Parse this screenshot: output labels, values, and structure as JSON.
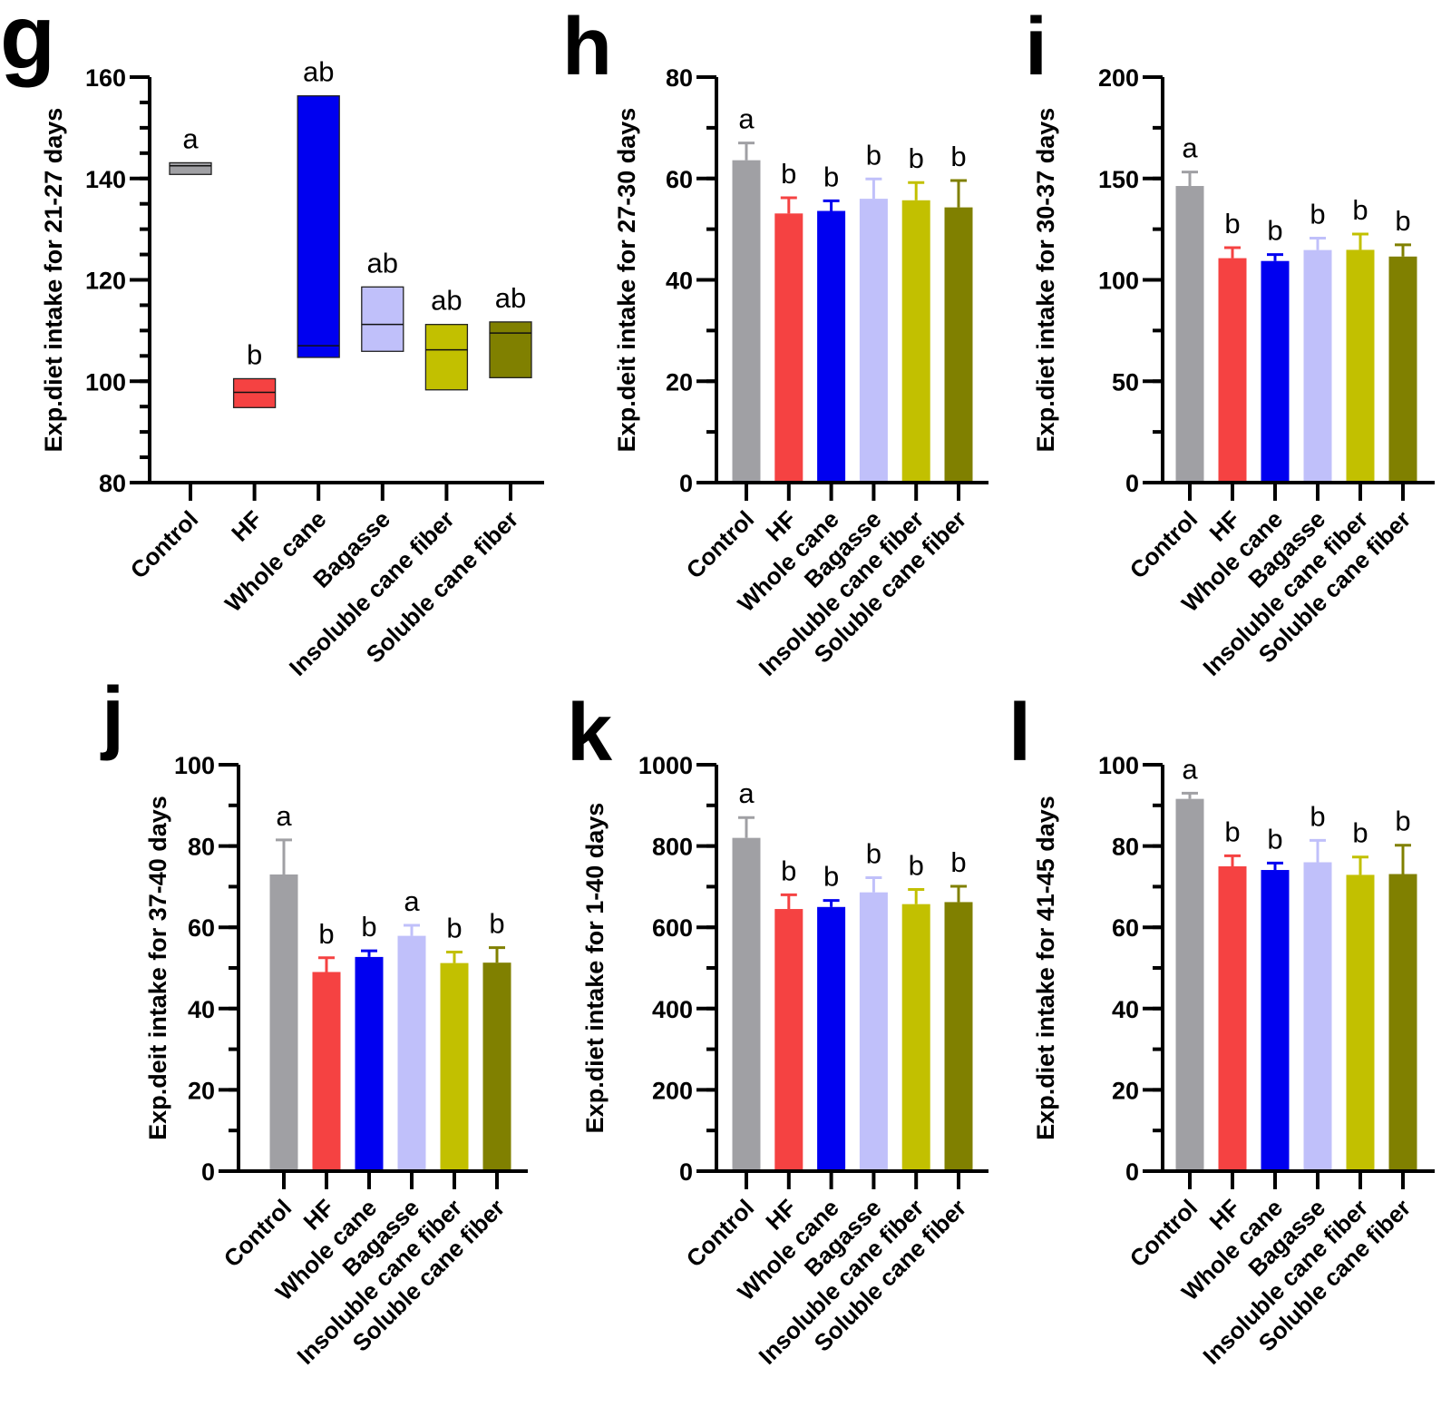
{
  "figure": {
    "categories": [
      "Control",
      "HF",
      "Whole cane",
      "Bagasse",
      "Insoluble cane fiber",
      "Soluble cane fiber"
    ],
    "colors": [
      "#a0a0a4",
      "#f54242",
      "#0000f0",
      "#c0c0fa",
      "#c2c000",
      "#808000"
    ]
  },
  "chart_data": [
    {
      "panel": "g",
      "type": "floating-bar",
      "ylabel": "Exp.diet intake for 21-27 days",
      "ylim": [
        80,
        160
      ],
      "yticks": [
        80,
        100,
        120,
        140,
        160
      ],
      "yticks_minor_step": 5,
      "categories": [
        "Control",
        "HF",
        "Whole cane",
        "Bagasse",
        "Insoluble cane fiber",
        "Soluble cane fiber"
      ],
      "min": [
        140.8,
        94.8,
        104.7,
        105.9,
        98.3,
        100.7
      ],
      "max": [
        143.1,
        100.5,
        156.3,
        118.6,
        111.2,
        111.7
      ],
      "median": [
        142.5,
        97.8,
        107.0,
        111.2,
        106.2,
        109.5
      ],
      "significance": [
        "a",
        "b",
        "ab",
        "ab",
        "ab",
        "ab"
      ]
    },
    {
      "panel": "h",
      "type": "bar",
      "ylabel": "Exp.deit intake for 27-30 days",
      "ylim": [
        0,
        80
      ],
      "yticks": [
        0,
        20,
        40,
        60,
        80
      ],
      "yticks_minor_step": 10,
      "categories": [
        "Control",
        "HF",
        "Whole cane",
        "Bagasse",
        "Insoluble cane fiber",
        "Soluble cane fiber"
      ],
      "values": [
        63.6,
        53.1,
        53.6,
        56.0,
        55.7,
        54.3
      ],
      "error_upper": [
        67.0,
        56.2,
        55.6,
        59.9,
        59.2,
        59.6
      ],
      "significance": [
        "a",
        "b",
        "b",
        "b",
        "b",
        "b"
      ]
    },
    {
      "panel": "i",
      "type": "bar",
      "ylabel": "Exp.diet intake for 30-37 days",
      "ylim": [
        0,
        200
      ],
      "yticks": [
        0,
        50,
        100,
        150,
        200
      ],
      "yticks_minor_step": 25,
      "categories": [
        "Control",
        "HF",
        "Whole cane",
        "Bagasse",
        "Insoluble cane fiber",
        "Soluble cane fiber"
      ],
      "values": [
        146.3,
        110.7,
        109.3,
        114.7,
        114.8,
        111.5
      ],
      "error_upper": [
        153.2,
        115.9,
        112.5,
        120.6,
        122.6,
        117.3
      ],
      "significance": [
        "a",
        "b",
        "b",
        "b",
        "b",
        "b"
      ]
    },
    {
      "panel": "j",
      "type": "bar",
      "ylabel": "Exp.deit intake for 37-40 days",
      "ylim": [
        0,
        100
      ],
      "yticks": [
        0,
        20,
        40,
        60,
        80,
        100
      ],
      "yticks_minor_step": 10,
      "categories": [
        "Control",
        "HF",
        "Whole cane",
        "Bagasse",
        "Insoluble cane fiber",
        "Soluble cane fiber"
      ],
      "values": [
        73.0,
        49.0,
        52.7,
        57.9,
        51.2,
        51.3
      ],
      "error_upper": [
        81.5,
        52.5,
        54.2,
        60.5,
        53.9,
        55.0
      ],
      "significance": [
        "a",
        "b",
        "b",
        "a",
        "b",
        "b"
      ]
    },
    {
      "panel": "k",
      "type": "bar",
      "ylabel": "Exp.diet intake for 1-40 days",
      "ylim": [
        0,
        1000
      ],
      "yticks": [
        0,
        200,
        400,
        600,
        800,
        1000
      ],
      "yticks_minor_step": 100,
      "categories": [
        "Control",
        "HF",
        "Whole cane",
        "Bagasse",
        "Insoluble cane fiber",
        "Soluble cane fiber"
      ],
      "values": [
        820,
        645,
        650,
        686,
        657,
        662
      ],
      "error_upper": [
        870,
        680,
        666,
        722,
        693,
        701
      ],
      "significance": [
        "a",
        "b",
        "b",
        "b",
        "b",
        "b"
      ]
    },
    {
      "panel": "l",
      "type": "bar",
      "ylabel": "Exp.diet intake for 41-45 days",
      "ylim": [
        0,
        100
      ],
      "yticks": [
        0,
        20,
        40,
        60,
        80,
        100
      ],
      "yticks_minor_step": 10,
      "categories": [
        "Control",
        "HF",
        "Whole cane",
        "Bagasse",
        "Insoluble cane fiber",
        "Soluble cane fiber"
      ],
      "values": [
        91.6,
        75.0,
        74.1,
        76.0,
        72.9,
        73.1
      ],
      "error_upper": [
        93.0,
        77.6,
        75.8,
        81.4,
        77.3,
        80.2
      ],
      "significance": [
        "a",
        "b",
        "b",
        "b",
        "b",
        "b"
      ]
    }
  ]
}
